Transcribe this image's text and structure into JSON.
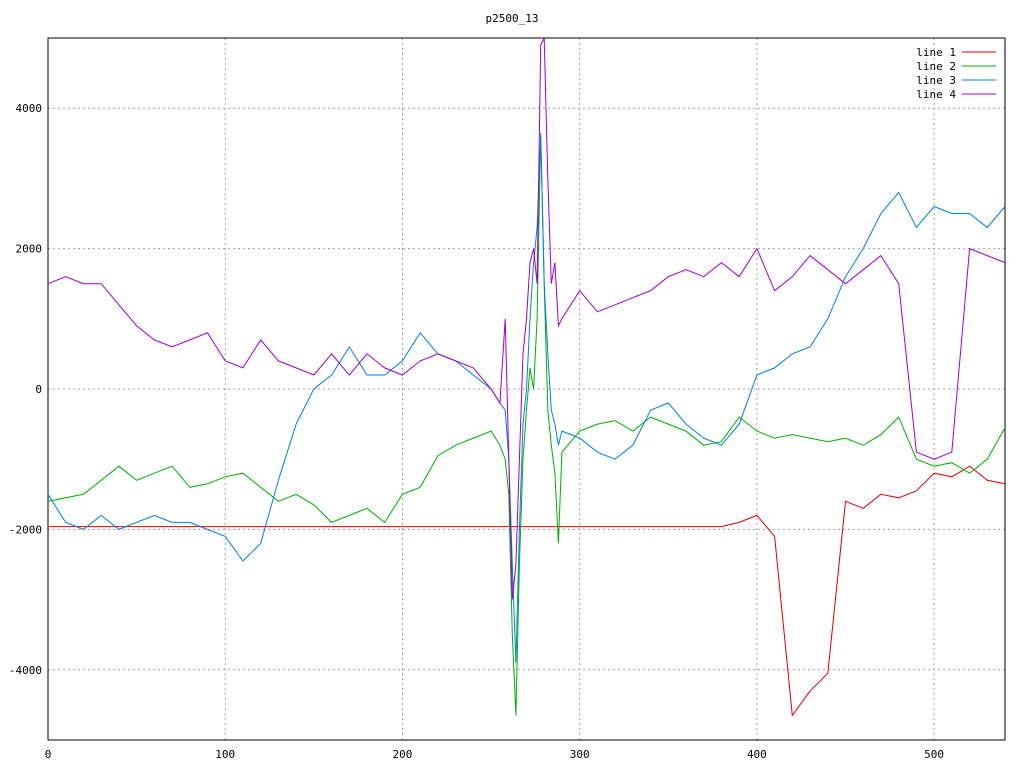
{
  "chart_data": {
    "type": "line",
    "title": "p2500_13",
    "x": [
      0,
      10,
      20,
      30,
      40,
      50,
      60,
      70,
      80,
      90,
      100,
      110,
      120,
      130,
      140,
      150,
      160,
      170,
      180,
      190,
      200,
      210,
      220,
      230,
      240,
      250,
      255,
      258,
      260,
      262,
      264,
      266,
      268,
      270,
      272,
      274,
      276,
      278,
      280,
      282,
      284,
      286,
      288,
      290,
      300,
      310,
      320,
      330,
      340,
      350,
      360,
      370,
      380,
      390,
      400,
      410,
      420,
      430,
      440,
      450,
      460,
      470,
      480,
      490,
      500,
      510,
      520,
      530,
      540
    ],
    "series": [
      {
        "name": "line 1",
        "color": "#e00000",
        "values": [
          -1960,
          -1960,
          -1960,
          -1960,
          -1960,
          -1960,
          -1960,
          -1960,
          -1960,
          -1960,
          -1960,
          -1960,
          -1960,
          -1960,
          -1960,
          -1960,
          -1960,
          -1960,
          -1960,
          -1960,
          -1960,
          -1960,
          -1960,
          -1960,
          -1960,
          -1960,
          -1960,
          -1960,
          -1960,
          -1960,
          -1960,
          -1960,
          -1960,
          -1960,
          -1960,
          -1960,
          -1960,
          -1960,
          -1960,
          -1960,
          -1960,
          -1960,
          -1960,
          -1960,
          -1960,
          -1960,
          -1960,
          -1960,
          -1960,
          -1960,
          -1960,
          -1960,
          -1960,
          -1900,
          -1800,
          -2100,
          -4650,
          -4300,
          -4050,
          -1600,
          -1700,
          -1500,
          -1550,
          -1450,
          -1200,
          -1250,
          -1100,
          -1300,
          -1350
        ]
      },
      {
        "name": "line 2",
        "color": "#00b000",
        "values": [
          -1600,
          -1550,
          -1500,
          -1300,
          -1100,
          -1300,
          -1200,
          -1100,
          -1400,
          -1350,
          -1250,
          -1200,
          -1400,
          -1600,
          -1500,
          -1650,
          -1900,
          -1800,
          -1700,
          -1900,
          -1500,
          -1400,
          -950,
          -800,
          -700,
          -600,
          -800,
          -1000,
          -1500,
          -3500,
          -4650,
          -2500,
          -1000,
          -300,
          300,
          0,
          1000,
          3650,
          1500,
          -300,
          -800,
          -1200,
          -2200,
          -900,
          -600,
          -500,
          -450,
          -600,
          -400,
          -500,
          -600,
          -800,
          -750,
          -400,
          -600,
          -700,
          -650,
          -700,
          -750,
          -700,
          -800,
          -650,
          -400,
          -1000,
          -1100,
          -1050,
          -1200,
          -1000,
          -550
        ]
      },
      {
        "name": "line 3",
        "color": "#0080e0",
        "values": [
          -1500,
          -1900,
          -2000,
          -1800,
          -2000,
          -1900,
          -1800,
          -1900,
          -1900,
          -2000,
          -2100,
          -2450,
          -2200,
          -1300,
          -500,
          0,
          200,
          600,
          200,
          200,
          400,
          800,
          500,
          400,
          200,
          0,
          -200,
          -300,
          -1000,
          -2500,
          -3900,
          -2000,
          -500,
          0,
          1000,
          1800,
          2300,
          3600,
          1500,
          500,
          -300,
          -500,
          -800,
          -600,
          -700,
          -900,
          -1000,
          -800,
          -300,
          -200,
          -500,
          -700,
          -800,
          -500,
          200,
          300,
          500,
          600,
          1000,
          1600,
          2000,
          2500,
          2800,
          2300,
          2600,
          2500,
          2500,
          2300,
          2600
        ]
      },
      {
        "name": "line 4",
        "color": "#a000d0",
        "values": [
          1500,
          1600,
          1500,
          1500,
          1200,
          900,
          700,
          600,
          700,
          800,
          400,
          300,
          700,
          400,
          300,
          200,
          500,
          200,
          500,
          300,
          200,
          400,
          500,
          400,
          300,
          0,
          -200,
          1000,
          -1000,
          -3000,
          -2500,
          -1000,
          500,
          1000,
          1800,
          2000,
          1500,
          4900,
          5000,
          3000,
          1500,
          1800,
          900,
          1000,
          1400,
          1100,
          1200,
          1300,
          1400,
          1600,
          1700,
          1600,
          1800,
          1600,
          2000,
          1400,
          1600,
          1900,
          1700,
          1500,
          1700,
          1900,
          1500,
          -900,
          -1000,
          -900,
          2000,
          1900,
          1800
        ]
      }
    ],
    "xlim": [
      0,
      540
    ],
    "xticks": [
      0,
      100,
      200,
      300,
      400,
      500
    ],
    "ylim": [
      -5000,
      5000
    ],
    "yticks": [
      -4000,
      -2000,
      0,
      2000,
      4000
    ],
    "grid": true,
    "legend": "top-right"
  }
}
